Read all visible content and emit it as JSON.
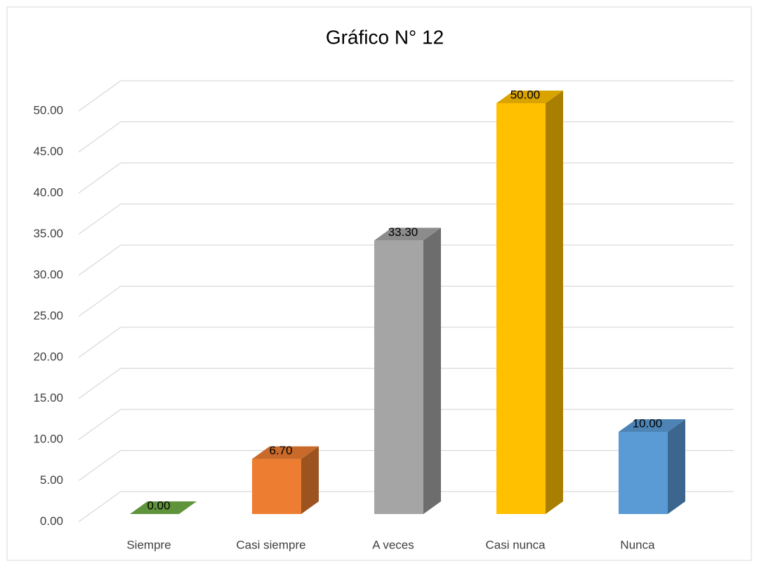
{
  "chart_data": {
    "type": "bar3d",
    "title": "Gráfico N° 12",
    "categories": [
      "Siempre",
      "Casi siempre",
      "A veces",
      "Casi nunca",
      "Nunca"
    ],
    "values": [
      0,
      6.7,
      33.3,
      50,
      10
    ],
    "value_labels": [
      "0.00",
      "6.70",
      "33.30",
      "50.00",
      "10.00"
    ],
    "colors": [
      "#70ad47",
      "#ed7d31",
      "#a5a5a5",
      "#ffc000",
      "#5b9bd5"
    ],
    "ylim": [
      0,
      50
    ],
    "yticks": [
      {
        "value": 0,
        "label": "0.00"
      },
      {
        "value": 5,
        "label": "5.00"
      },
      {
        "value": 10,
        "label": "10.00"
      },
      {
        "value": 15,
        "label": "15.00"
      },
      {
        "value": 20,
        "label": "20.00"
      },
      {
        "value": 25,
        "label": "25.00"
      },
      {
        "value": 30,
        "label": "30.00"
      },
      {
        "value": 35,
        "label": "35.00"
      },
      {
        "value": 40,
        "label": "40.00"
      },
      {
        "value": 45,
        "label": "45.00"
      },
      {
        "value": 50,
        "label": "50.00"
      }
    ],
    "grid": true
  }
}
